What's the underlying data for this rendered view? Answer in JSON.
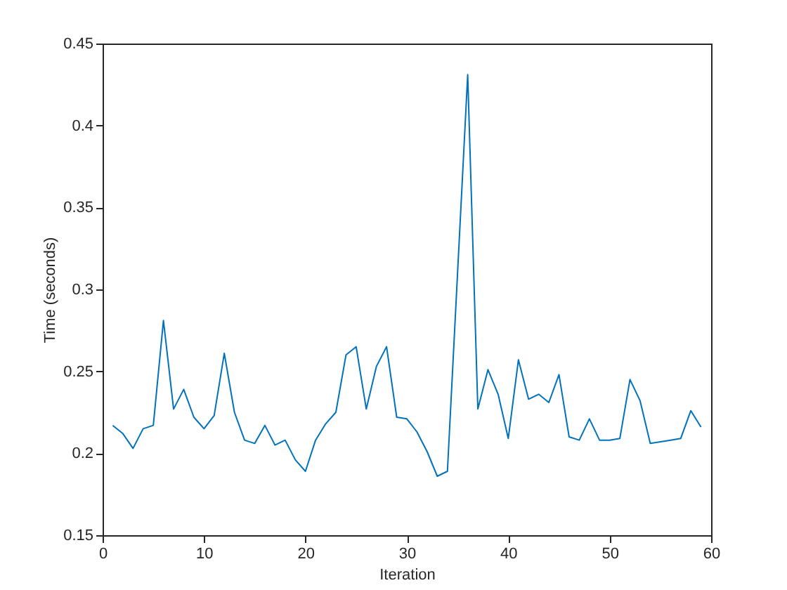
{
  "chart_data": {
    "type": "line",
    "xlabel": "Iteration",
    "ylabel": "Time (seconds)",
    "x": [
      1,
      2,
      3,
      4,
      5,
      6,
      7,
      8,
      9,
      10,
      11,
      12,
      13,
      14,
      15,
      16,
      17,
      18,
      19,
      20,
      21,
      22,
      23,
      24,
      25,
      26,
      27,
      28,
      29,
      30,
      31,
      32,
      33,
      34,
      35,
      36,
      37,
      38,
      39,
      40,
      41,
      42,
      43,
      44,
      45,
      46,
      47,
      48,
      49,
      50,
      51,
      52,
      53,
      54,
      55,
      56,
      57,
      58,
      59
    ],
    "series": [
      {
        "color": "#0072bd",
        "values": [
          0.217,
          0.212,
          0.203,
          0.215,
          0.217,
          0.281,
          0.227,
          0.239,
          0.222,
          0.215,
          0.223,
          0.261,
          0.225,
          0.208,
          0.206,
          0.217,
          0.205,
          0.208,
          0.196,
          0.189,
          0.208,
          0.218,
          0.225,
          0.26,
          0.265,
          0.227,
          0.253,
          0.265,
          0.222,
          0.221,
          0.213,
          0.201,
          0.186,
          0.189,
          0.31,
          0.431,
          0.227,
          0.251,
          0.236,
          0.209,
          0.257,
          0.233,
          0.236,
          0.231,
          0.248,
          0.21,
          0.208,
          0.221,
          0.208,
          0.208,
          0.209,
          0.245,
          0.232,
          0.206,
          0.207,
          0.208,
          0.209,
          0.226,
          0.216
        ]
      }
    ],
    "xlim": [
      0,
      60
    ],
    "xticks": [
      0,
      10,
      20,
      30,
      40,
      50,
      60
    ],
    "ylim": [
      0.15,
      0.45
    ],
    "yticks": [
      0.15,
      0.2,
      0.25,
      0.3,
      0.35,
      0.4,
      0.45
    ],
    "grid": false,
    "marker": "none",
    "line_style": "solid"
  }
}
